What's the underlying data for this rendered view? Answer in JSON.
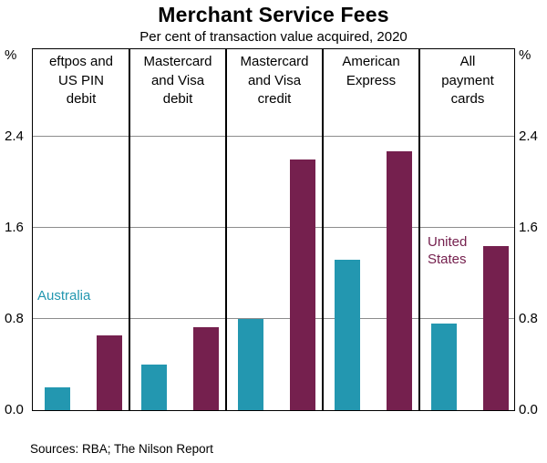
{
  "chart_data": {
    "type": "bar",
    "title": "Merchant Service Fees",
    "subtitle": "Per cent of transaction value acquired, 2020",
    "unit": "%",
    "ylim": [
      0,
      3.16
    ],
    "ytick_labels": [
      "0.0",
      "0.8",
      "1.6",
      "2.4"
    ],
    "grid": true,
    "legend_position": "in-plot-annotations",
    "categories": [
      {
        "label": "eftpos and US PIN debit",
        "lines": [
          "eftpos and",
          "US PIN",
          "debit"
        ]
      },
      {
        "label": "Mastercard and Visa debit",
        "lines": [
          "Mastercard",
          "and Visa",
          "debit"
        ]
      },
      {
        "label": "Mastercard and Visa credit",
        "lines": [
          "Mastercard",
          "and Visa",
          "credit"
        ]
      },
      {
        "label": "American Express",
        "lines": [
          "American",
          "Express"
        ]
      },
      {
        "label": "All payment cards",
        "lines": [
          "All",
          "payment",
          "cards"
        ]
      }
    ],
    "series": [
      {
        "name": "Australia",
        "color": "#2397B0",
        "values": [
          0.2,
          0.4,
          0.8,
          1.32,
          0.76
        ]
      },
      {
        "name": "United States",
        "color": "#75204E",
        "values": [
          0.66,
          0.73,
          2.2,
          2.27,
          1.44
        ]
      }
    ],
    "annotations": [
      {
        "text": "Australia",
        "color": "#2397B0",
        "panel": 0,
        "x": 5,
        "y": 262
      },
      {
        "text": "United\nStates",
        "color": "#75204E",
        "panel": 4,
        "x": 9,
        "y": 203
      }
    ]
  },
  "footer": {
    "sources": "Sources: RBA; The Nilson Report"
  }
}
